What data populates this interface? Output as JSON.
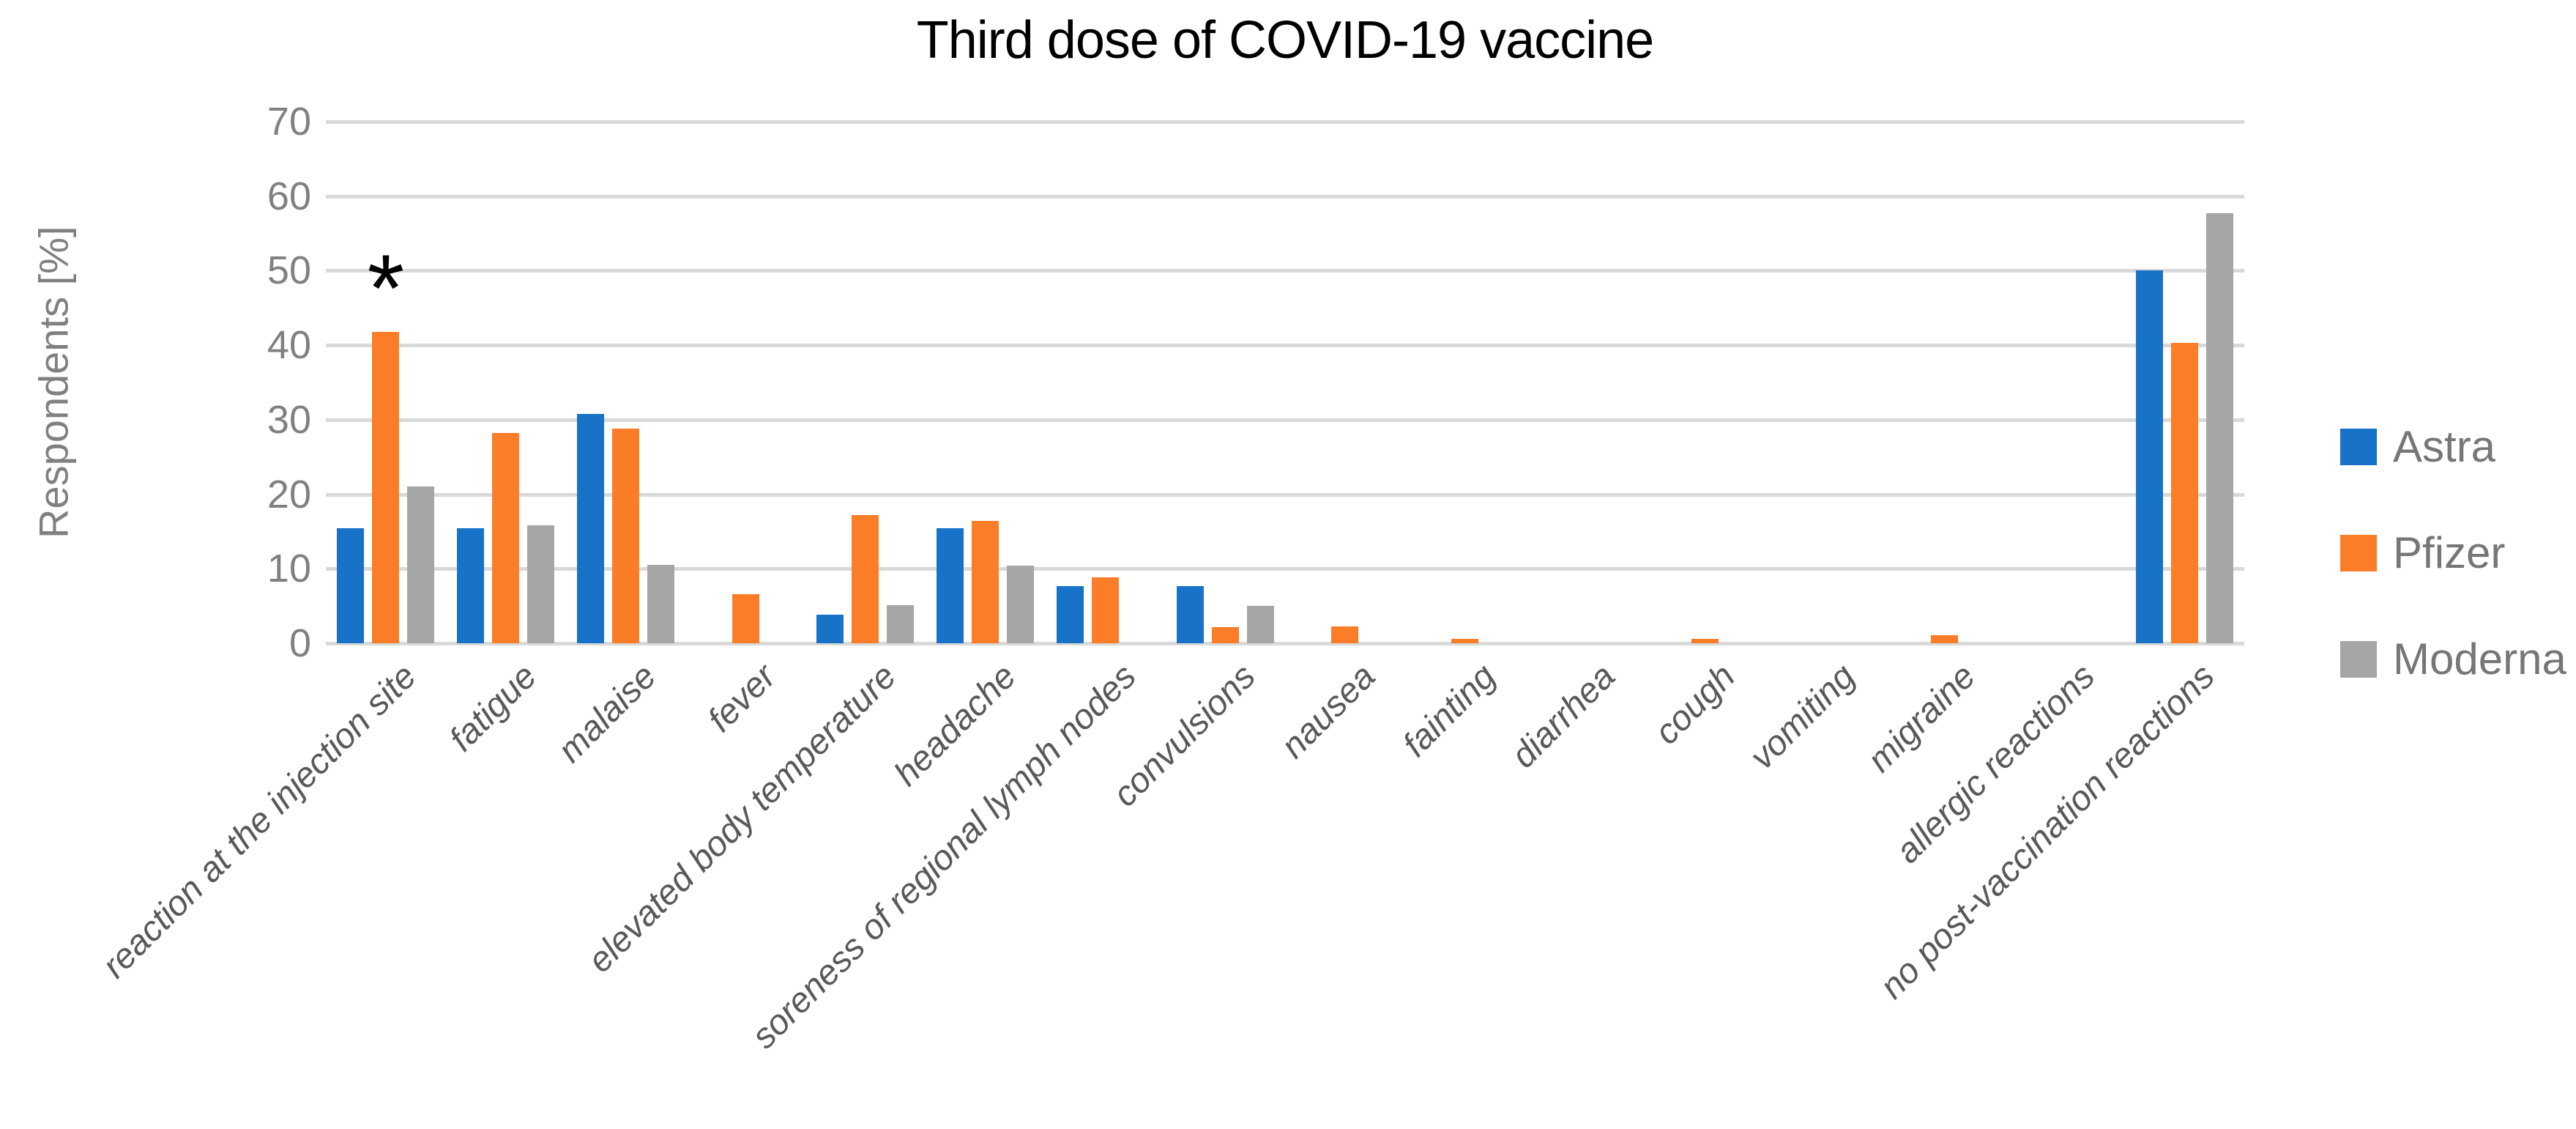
{
  "chart_data": {
    "type": "bar",
    "title": "Third dose of COVID-19 vaccine",
    "ylabel": "Respondents [%]",
    "xlabel": "",
    "ylim": [
      0,
      70
    ],
    "yticks": [
      0,
      10,
      20,
      30,
      40,
      50,
      60,
      70
    ],
    "grid": true,
    "legend_position": "right",
    "categories": [
      "reaction at the injection site",
      "fatigue",
      "malaise",
      "fever",
      "elevated body temperature",
      "headache",
      "soreness of regional lymph nodes",
      "convulsions",
      "nausea",
      "fainting",
      "diarrhea",
      "cough",
      "vomiting",
      "migraine",
      "allergic reactions",
      "no post-vaccination reactions"
    ],
    "series": [
      {
        "name": "Astra",
        "color": "#1772C8",
        "values": [
          15.4,
          15.4,
          30.8,
          0,
          3.8,
          15.4,
          7.7,
          7.7,
          0,
          0,
          0,
          0,
          0,
          0,
          0,
          50.0
        ]
      },
      {
        "name": "Pfizer",
        "color": "#FB7D27",
        "values": [
          41.8,
          28.2,
          28.8,
          6.6,
          17.2,
          16.4,
          8.8,
          2.2,
          2.3,
          0.6,
          0,
          0.6,
          0,
          1.1,
          0,
          40.3
        ]
      },
      {
        "name": "Moderna",
        "color": "#A6A6A6",
        "values": [
          21.0,
          15.8,
          10.5,
          0,
          5.1,
          10.4,
          0,
          5.0,
          0,
          0,
          0,
          0,
          0,
          0,
          0,
          57.7
        ]
      }
    ],
    "annotation": {
      "symbol": "*",
      "category": "reaction at the injection site",
      "category_index": 0,
      "series": "Pfizer"
    },
    "colors": {
      "background": "#FFFFFF",
      "gridline": "#D9D9D9",
      "title_text": "#000000",
      "axis_tick_text": "#808080",
      "category_text": "#595959",
      "legend_text": "#767676"
    }
  }
}
